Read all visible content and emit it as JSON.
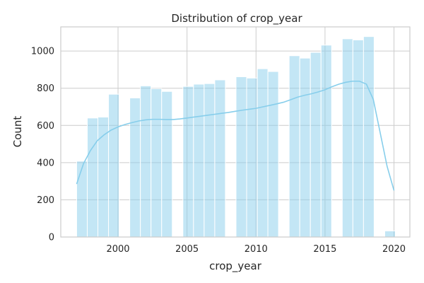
{
  "chart_data": {
    "type": "bar",
    "title": "Distribution of crop_year",
    "xlabel": "crop_year",
    "ylabel": "Count",
    "xlim": [
      1995.85,
      2021.15
    ],
    "ylim": [
      0,
      1130
    ],
    "x_ticks": [
      2000,
      2005,
      2010,
      2015,
      2020
    ],
    "y_ticks": [
      0,
      200,
      400,
      600,
      800,
      1000
    ],
    "grid": true,
    "legend": "none",
    "colors": {
      "bar": "#87ceeb",
      "kde": "#87ceeb",
      "grid": "#cccccc",
      "spine": "#cccccc"
    },
    "bins": [
      {
        "x0": 1997.0,
        "x1": 1997.77,
        "count": 408
      },
      {
        "x0": 1997.77,
        "x1": 1998.54,
        "count": 640
      },
      {
        "x0": 1998.54,
        "x1": 1999.31,
        "count": 645
      },
      {
        "x0": 1999.31,
        "x1": 2000.08,
        "count": 768
      },
      {
        "x0": 2000.85,
        "x1": 2001.62,
        "count": 748
      },
      {
        "x0": 2001.62,
        "x1": 2002.39,
        "count": 813
      },
      {
        "x0": 2002.39,
        "x1": 2003.16,
        "count": 798
      },
      {
        "x0": 2003.16,
        "x1": 2003.93,
        "count": 783
      },
      {
        "x0": 2004.7,
        "x1": 2005.47,
        "count": 810
      },
      {
        "x0": 2005.47,
        "x1": 2006.24,
        "count": 822
      },
      {
        "x0": 2006.24,
        "x1": 2007.01,
        "count": 825
      },
      {
        "x0": 2007.01,
        "x1": 2007.78,
        "count": 845
      },
      {
        "x0": 2008.55,
        "x1": 2009.32,
        "count": 862
      },
      {
        "x0": 2009.32,
        "x1": 2010.09,
        "count": 855
      },
      {
        "x0": 2010.09,
        "x1": 2010.86,
        "count": 905
      },
      {
        "x0": 2010.86,
        "x1": 2011.63,
        "count": 890
      },
      {
        "x0": 2012.4,
        "x1": 2013.17,
        "count": 975
      },
      {
        "x0": 2013.17,
        "x1": 2013.94,
        "count": 962
      },
      {
        "x0": 2013.94,
        "x1": 2014.71,
        "count": 993
      },
      {
        "x0": 2014.71,
        "x1": 2015.48,
        "count": 1032
      },
      {
        "x0": 2016.25,
        "x1": 2017.02,
        "count": 1066
      },
      {
        "x0": 2017.02,
        "x1": 2017.79,
        "count": 1060
      },
      {
        "x0": 2017.79,
        "x1": 2018.56,
        "count": 1078
      },
      {
        "x0": 2019.33,
        "x1": 2020.1,
        "count": 33
      }
    ],
    "kde": {
      "x": [
        1997.0,
        1997.5,
        1998.0,
        1998.5,
        1999.0,
        1999.5,
        2000.0,
        2000.5,
        2001.0,
        2001.5,
        2002.0,
        2002.5,
        2003.0,
        2003.5,
        2004.0,
        2004.5,
        2005.0,
        2005.5,
        2006.0,
        2006.5,
        2007.0,
        2007.5,
        2008.0,
        2008.5,
        2009.0,
        2009.5,
        2010.0,
        2010.5,
        2011.0,
        2011.5,
        2012.0,
        2012.5,
        2013.0,
        2013.5,
        2014.0,
        2014.5,
        2015.0,
        2015.5,
        2016.0,
        2016.5,
        2017.0,
        2017.5,
        2018.0,
        2018.5,
        2019.0,
        2019.5,
        2020.0
      ],
      "y": [
        285,
        395,
        465,
        518,
        550,
        575,
        592,
        605,
        615,
        624,
        630,
        633,
        633,
        632,
        632,
        635,
        640,
        645,
        650,
        655,
        660,
        665,
        670,
        676,
        682,
        687,
        692,
        700,
        708,
        716,
        725,
        738,
        752,
        762,
        770,
        780,
        792,
        808,
        822,
        832,
        838,
        838,
        822,
        740,
        560,
        380,
        250
      ]
    }
  }
}
